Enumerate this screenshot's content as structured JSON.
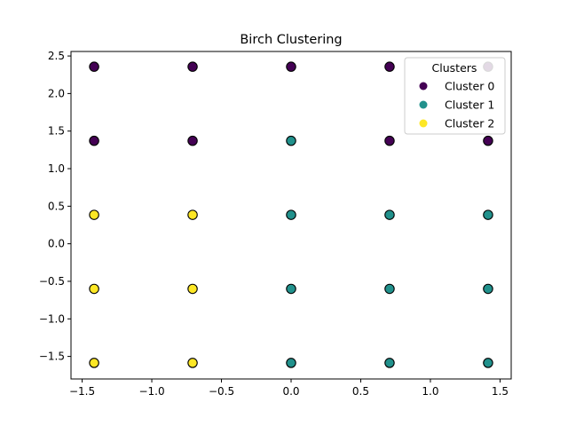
{
  "chart_data": {
    "type": "scatter",
    "title": "Birch Clustering",
    "xlabel": "",
    "ylabel": "",
    "xlim": [
      -1.58,
      1.58
    ],
    "ylim": [
      -1.8,
      2.56
    ],
    "xticks": [
      -1.5,
      -1.0,
      -0.5,
      0.0,
      0.5,
      1.0,
      1.5
    ],
    "xtick_labels": [
      "−1.5",
      "−1.0",
      "−0.5",
      "0.0",
      "0.5",
      "1.0",
      "1.5"
    ],
    "yticks": [
      -1.5,
      -1.0,
      -0.5,
      0.0,
      0.5,
      1.0,
      1.5,
      2.0,
      2.5
    ],
    "ytick_labels": [
      "−1.5",
      "−1.0",
      "−0.5",
      "0.0",
      "0.5",
      "1.0",
      "1.5",
      "2.0",
      "2.5"
    ],
    "grid": false,
    "legend": {
      "title": "Clusters",
      "placement": "top-right"
    },
    "series": [
      {
        "name": "Cluster 0",
        "color": "#440154",
        "points": [
          [
            -1.414,
            2.357
          ],
          [
            -0.707,
            2.357
          ],
          [
            0.0,
            2.357
          ],
          [
            0.707,
            2.357
          ],
          [
            1.414,
            2.357
          ],
          [
            -1.414,
            1.371
          ],
          [
            -0.707,
            1.371
          ],
          [
            0.707,
            1.371
          ],
          [
            1.414,
            1.371
          ]
        ]
      },
      {
        "name": "Cluster 1",
        "color": "#21918c",
        "points": [
          [
            0.0,
            1.371
          ],
          [
            0.0,
            0.385
          ],
          [
            0.707,
            0.385
          ],
          [
            1.414,
            0.385
          ],
          [
            0.0,
            -0.6
          ],
          [
            0.707,
            -0.6
          ],
          [
            1.414,
            -0.6
          ],
          [
            0.0,
            -1.586
          ],
          [
            0.707,
            -1.586
          ],
          [
            1.414,
            -1.586
          ]
        ]
      },
      {
        "name": "Cluster 2",
        "color": "#fde725",
        "points": [
          [
            -1.414,
            0.385
          ],
          [
            -0.707,
            0.385
          ],
          [
            -1.414,
            -0.6
          ],
          [
            -0.707,
            -0.6
          ],
          [
            -1.414,
            -1.586
          ],
          [
            -0.707,
            -1.586
          ]
        ]
      }
    ]
  }
}
